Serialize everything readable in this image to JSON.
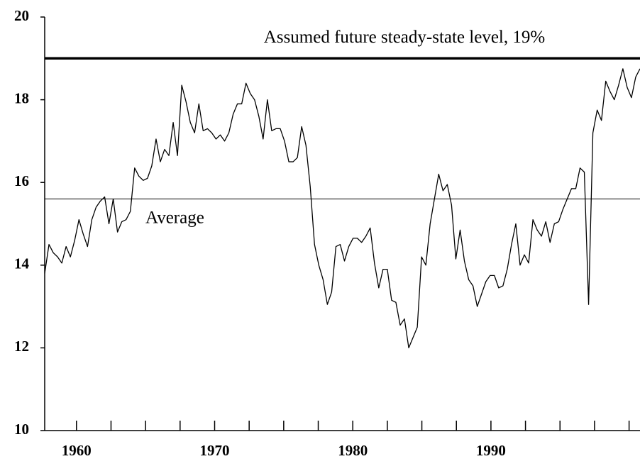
{
  "chart_data": {
    "type": "line",
    "x": [
      1957.7,
      1958.01,
      1958.32,
      1958.63,
      1958.94,
      1959.25,
      1959.56,
      1959.87,
      1960.18,
      1960.49,
      1960.8,
      1961.11,
      1961.42,
      1961.73,
      1962.04,
      1962.35,
      1962.66,
      1962.97,
      1963.28,
      1963.59,
      1963.9,
      1964.21,
      1964.52,
      1964.83,
      1965.14,
      1965.45,
      1965.76,
      1966.07,
      1966.38,
      1966.69,
      1967,
      1967.31,
      1967.62,
      1967.93,
      1968.24,
      1968.55,
      1968.86,
      1969.17,
      1969.48,
      1969.79,
      1970.1,
      1970.41,
      1970.72,
      1971.03,
      1971.34,
      1971.65,
      1971.96,
      1972.27,
      1972.58,
      1972.89,
      1973.2,
      1973.51,
      1973.82,
      1974.13,
      1974.44,
      1974.75,
      1975.06,
      1975.37,
      1975.68,
      1975.99,
      1976.3,
      1976.61,
      1976.92,
      1977.23,
      1977.54,
      1977.85,
      1978.16,
      1978.47,
      1978.78,
      1979.09,
      1979.4,
      1979.71,
      1980.02,
      1980.33,
      1980.64,
      1980.95,
      1981.26,
      1981.57,
      1981.88,
      1982.19,
      1982.5,
      1982.81,
      1983.12,
      1983.43,
      1983.74,
      1984.05,
      1984.36,
      1984.67,
      1984.98,
      1985.29,
      1985.6,
      1985.91,
      1986.22,
      1986.53,
      1986.84,
      1987.15,
      1987.46,
      1987.77,
      1988.08,
      1988.39,
      1988.7,
      1989.01,
      1989.32,
      1989.63,
      1989.94,
      1990.25,
      1990.56,
      1990.87,
      1991.18,
      1991.49,
      1991.8,
      1992.11,
      1992.42,
      1992.73,
      1993.04,
      1993.35,
      1993.66,
      1993.97,
      1994.28,
      1994.59,
      1994.9,
      1995.21,
      1995.52,
      1995.83,
      1996.14,
      1996.45,
      1996.76,
      1997.07,
      1997.38,
      1997.69,
      1998,
      1998.31,
      1998.62,
      1998.93,
      1999.24,
      1999.55,
      1999.86,
      2000.17,
      2000.48,
      2000.79
    ],
    "series": [
      {
        "color": "#000000",
        "values": [
          13.8,
          14.5,
          14.3,
          14.2,
          14.05,
          14.45,
          14.2,
          14.6,
          15.1,
          14.75,
          14.45,
          15.1,
          15.4,
          15.55,
          15.65,
          15.0,
          15.6,
          14.8,
          15.05,
          15.1,
          15.3,
          16.35,
          16.15,
          16.05,
          16.1,
          16.4,
          17.05,
          16.5,
          16.8,
          16.65,
          17.45,
          16.65,
          18.35,
          17.95,
          17.45,
          17.2,
          17.9,
          17.25,
          17.3,
          17.2,
          17.05,
          17.15,
          17.0,
          17.2,
          17.65,
          17.9,
          17.9,
          18.4,
          18.15,
          18.0,
          17.6,
          17.05,
          18.0,
          17.25,
          17.3,
          17.3,
          17.0,
          16.5,
          16.5,
          16.6,
          17.35,
          16.9,
          15.9,
          14.5,
          14.0,
          13.65,
          13.05,
          13.35,
          14.45,
          14.5,
          14.1,
          14.45,
          14.65,
          14.65,
          14.55,
          14.7,
          14.9,
          14.05,
          13.45,
          13.9,
          13.9,
          13.15,
          13.1,
          12.55,
          12.7,
          12.0,
          12.25,
          12.5,
          14.2,
          14.0,
          15.0,
          15.6,
          16.2,
          15.8,
          15.95,
          15.45,
          14.15,
          14.85,
          14.1,
          13.65,
          13.5,
          13.0,
          13.3,
          13.6,
          13.75,
          13.75,
          13.45,
          13.5,
          13.9,
          14.5,
          15.0,
          14.0,
          14.25,
          14.05,
          15.1,
          14.85,
          14.7,
          15.05,
          14.55,
          15.0,
          15.05,
          15.35,
          15.6,
          15.85,
          15.85,
          16.35,
          16.25,
          13.05,
          17.2,
          17.75,
          17.5,
          18.45,
          18.2,
          18.0,
          18.35,
          18.75,
          18.3,
          18.05,
          18.55,
          18.75
        ]
      }
    ],
    "xlim": [
      1957.7,
      2000.79
    ],
    "xticks": [
      1960,
      1970,
      1980,
      1990
    ],
    "xticks_minor": [
      1962.5,
      1965,
      1967.5,
      1972.5,
      1975,
      1977.5,
      1982.5,
      1985,
      1987.5,
      1992.5,
      1995,
      1997.5,
      2000
    ],
    "ylim": [
      10,
      20
    ],
    "yticks": [
      10,
      12,
      14,
      16,
      18,
      20
    ],
    "reference_lines": [
      {
        "value": 19,
        "label": "Assumed future steady-state level, 19%",
        "linewidth": 3.5
      },
      {
        "value": 15.6,
        "label": "Average",
        "linewidth": 1
      }
    ]
  }
}
